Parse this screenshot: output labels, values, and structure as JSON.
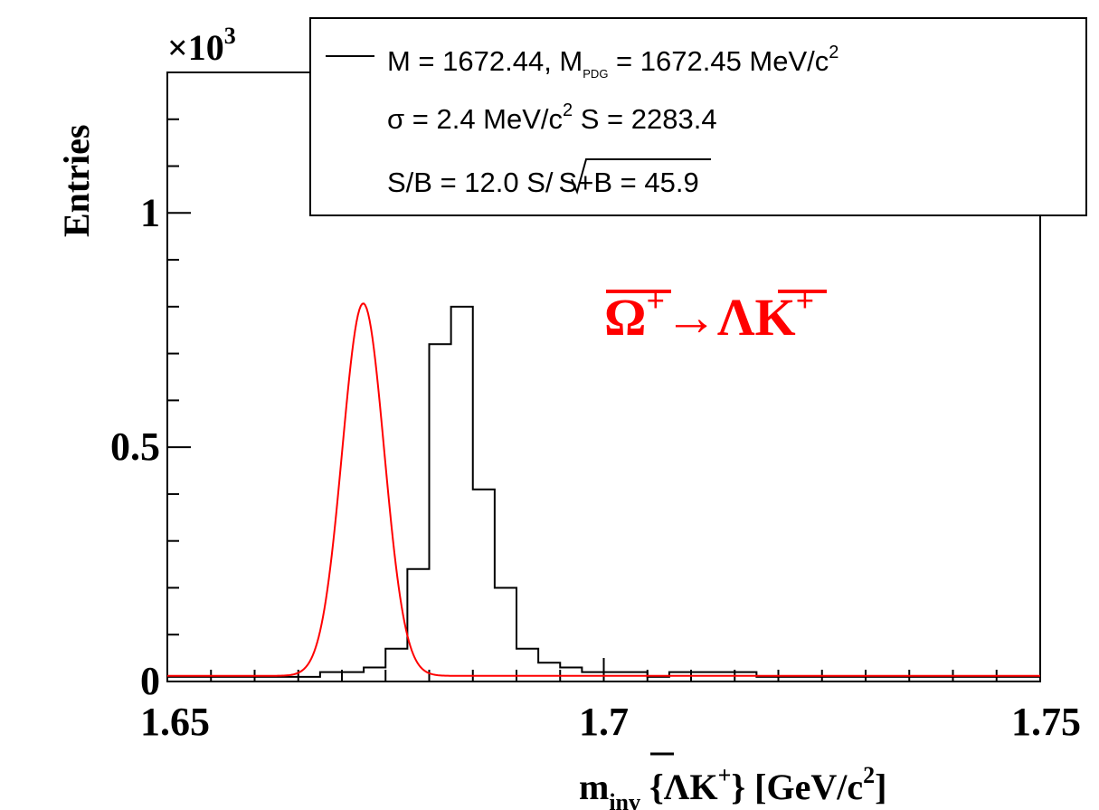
{
  "chart_data": {
    "type": "histogram",
    "xlabel": {
      "main": "m",
      "sub": "inv",
      "rest": " {ΛK",
      "sup": "+",
      "tail": "} [GeV/c",
      "sup2": "2",
      "end": "]"
    },
    "ylabel": "Entries",
    "yexponent": {
      "base": "×10",
      "exp": "3"
    },
    "xlim": [
      1.65,
      1.75
    ],
    "ylim": [
      0,
      1.3
    ],
    "x_ticks": [
      {
        "value": 1.65,
        "label": "1.65"
      },
      {
        "value": 1.7,
        "label": "1.7"
      },
      {
        "value": 1.75,
        "label": "1.75"
      }
    ],
    "y_ticks": [
      {
        "value": 0,
        "label": "0"
      },
      {
        "value": 0.5,
        "label": "0.5"
      },
      {
        "value": 1,
        "label": "1"
      }
    ],
    "bin_width": 0.0025,
    "bin_start": 1.65,
    "histogram_values": [
      0.01,
      0.01,
      0.01,
      0.01,
      0.01,
      0.01,
      0.01,
      0.02,
      0.02,
      0.03,
      0.07,
      0.24,
      0.72,
      0.8,
      0.41,
      0.2,
      0.07,
      0.04,
      0.03,
      0.02,
      0.02,
      0.02,
      0.01,
      0.02,
      0.02,
      0.02,
      0.02,
      0.01,
      0.01,
      0.01,
      0.01,
      0.01,
      0.01,
      0.01,
      0.01,
      0.01,
      0.01,
      0.01,
      0.01,
      0.01
    ],
    "fit": {
      "type": "gaussian+linear",
      "mean": 1.67244,
      "sigma": 0.0024,
      "amplitude": 0.795,
      "background": 0.012,
      "color": "#ff0000"
    },
    "legend": {
      "line1": {
        "a": "M = 1672.44, M",
        "sub": "PDG",
        "b": " = 1672.45 MeV/c",
        "sup": "2"
      },
      "line2": {
        "a": "σ = 2.4 MeV/c",
        "sup": "2",
        "b": "  S = 2283.4"
      },
      "line3": {
        "a": "S/B = 12.0  S/",
        "root": "S+B",
        "b": " = 45.9"
      }
    },
    "annotation": {
      "a": "Ω",
      "sup1": "+",
      "arrow": "→",
      "b": "ΛK",
      "sup2": "+",
      "color": "#ff0000"
    },
    "colors": {
      "histogram": "#000000",
      "fit": "#ff0000",
      "annotation": "#ff0000"
    }
  }
}
